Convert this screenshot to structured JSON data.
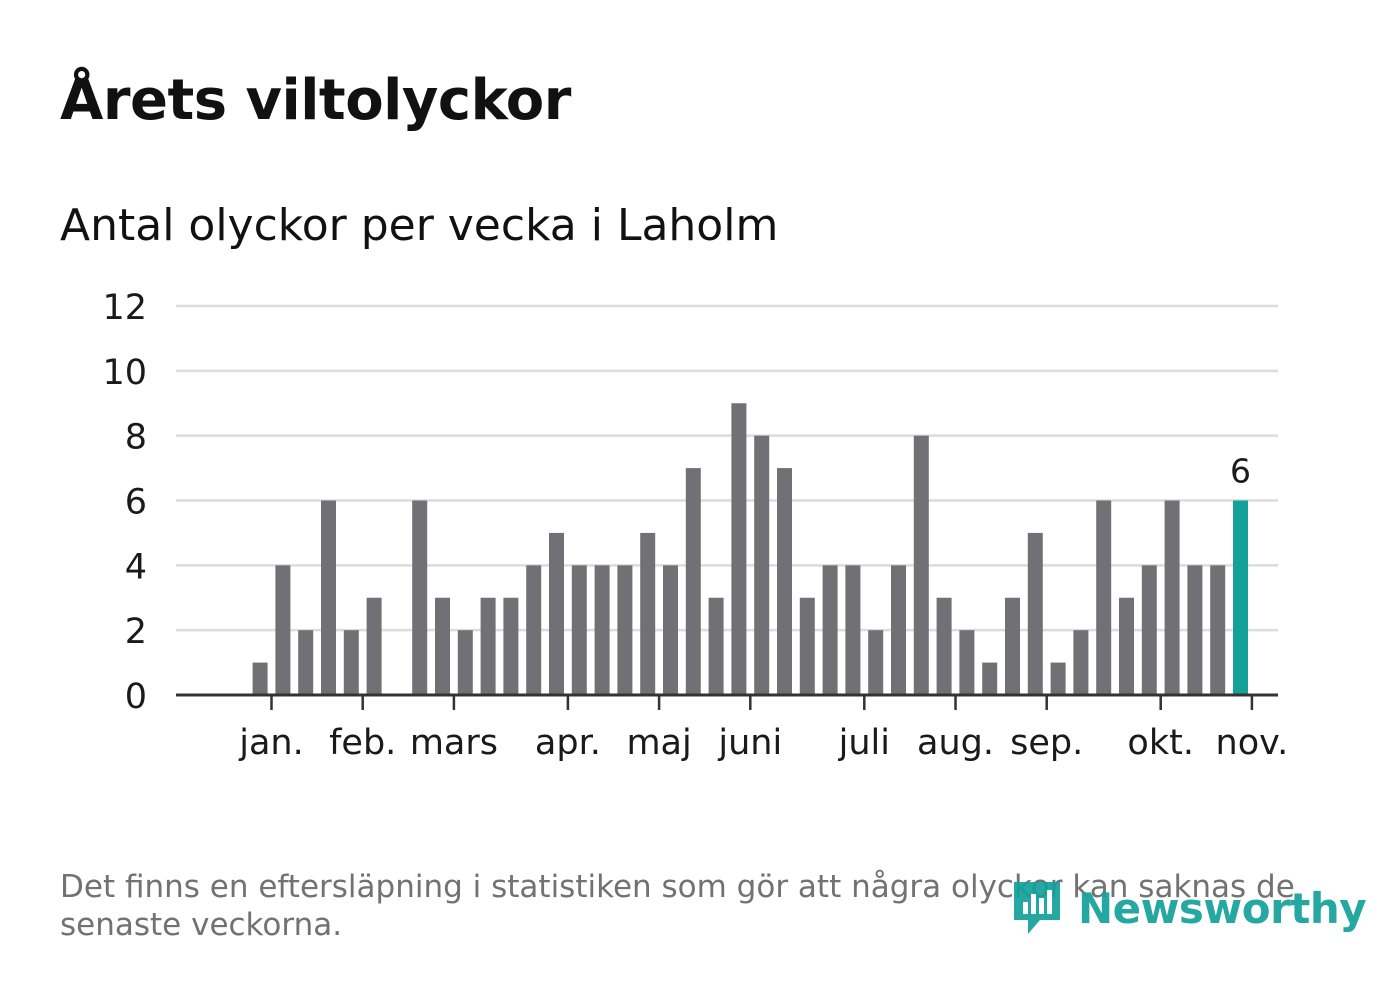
{
  "title": "Årets viltolyckor",
  "subtitle": "Antal olyckor per vecka i Laholm",
  "note": "Det finns en eftersläpning i statistiken som gör att några olyckor kan saknas de senaste veckorna.",
  "logo": {
    "text": "Newsworthy",
    "icon": "newsworthy-logo-icon"
  },
  "colors": {
    "bar": "#717075",
    "highlight": "#13a19a",
    "grid": "#dcdcdc",
    "axis": "#333333",
    "text": "#1a1a1a",
    "note": "#727272"
  },
  "chart_data": {
    "type": "bar",
    "title": "Årets viltolyckor",
    "subtitle": "Antal olyckor per vecka i Laholm",
    "xlabel": "",
    "ylabel": "",
    "ylim": [
      0,
      12
    ],
    "y_ticks": [
      0,
      2,
      4,
      6,
      8,
      10,
      12
    ],
    "grid": true,
    "weeks": [
      1,
      2,
      3,
      4,
      5,
      6,
      7,
      8,
      9,
      10,
      11,
      12,
      13,
      14,
      15,
      16,
      17,
      18,
      19,
      20,
      21,
      22,
      23,
      24,
      25,
      26,
      27,
      28,
      29,
      30,
      31,
      32,
      33,
      34,
      35,
      36,
      37,
      38,
      39,
      40,
      41,
      42,
      43,
      44,
      45,
      46
    ],
    "values": [
      0,
      0,
      1,
      4,
      2,
      6,
      2,
      3,
      0,
      6,
      3,
      2,
      3,
      3,
      4,
      5,
      4,
      4,
      4,
      5,
      4,
      7,
      3,
      9,
      8,
      7,
      3,
      4,
      4,
      2,
      4,
      8,
      3,
      2,
      1,
      3,
      5,
      1,
      2,
      6,
      3,
      4,
      6,
      4,
      4,
      6
    ],
    "month_labels": [
      {
        "label": "jan.",
        "week": 3.5
      },
      {
        "label": "feb.",
        "week": 7.5
      },
      {
        "label": "mars",
        "week": 11.5
      },
      {
        "label": "apr.",
        "week": 16.5
      },
      {
        "label": "maj",
        "week": 20.5
      },
      {
        "label": "juni",
        "week": 24.5
      },
      {
        "label": "juli",
        "week": 29.5
      },
      {
        "label": "aug.",
        "week": 33.5
      },
      {
        "label": "sep.",
        "week": 37.5
      },
      {
        "label": "okt.",
        "week": 42.5
      },
      {
        "label": "nov.",
        "week": 46.5
      }
    ],
    "highlight": {
      "week": 46,
      "value": 6,
      "label": "6"
    }
  }
}
